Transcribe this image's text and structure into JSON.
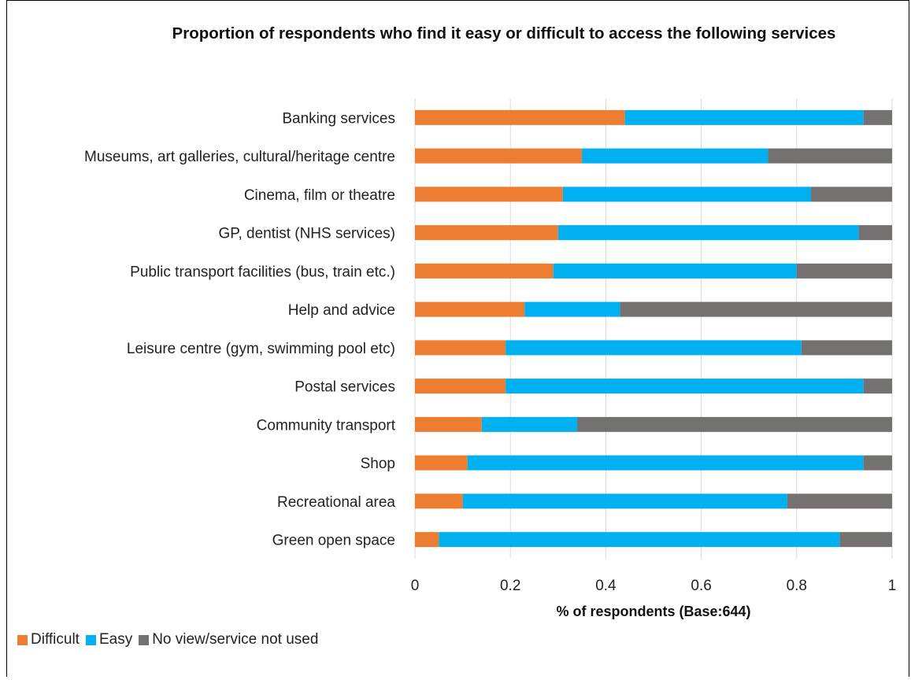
{
  "chart_data": {
    "type": "bar",
    "orientation": "horizontal",
    "stacked": true,
    "title": "Proportion of respondents who find it easy or difficult to access the following services",
    "xlabel": "% of respondents (Base:644)",
    "xlim": [
      0,
      1
    ],
    "xticks": [
      "0",
      "0.2",
      "0.4",
      "0.6",
      "0.8",
      "1"
    ],
    "grid": true,
    "legend_position": "bottom-left",
    "categories": [
      "Banking services",
      "Museums, art galleries, cultural/heritage centre",
      "Cinema, film or theatre",
      "GP, dentist (NHS services)",
      "Public transport facilities (bus, train etc.)",
      "Help and advice",
      "Leisure centre (gym, swimming pool etc)",
      "Postal services",
      "Community transport",
      "Shop",
      "Recreational area",
      "Green open space"
    ],
    "series": [
      {
        "name": "Difficult",
        "color": "#ED7D31",
        "values": [
          0.44,
          0.35,
          0.31,
          0.3,
          0.29,
          0.23,
          0.19,
          0.19,
          0.14,
          0.11,
          0.1,
          0.05
        ]
      },
      {
        "name": "Easy",
        "color": "#00B0F0",
        "values": [
          0.5,
          0.39,
          0.52,
          0.63,
          0.51,
          0.2,
          0.62,
          0.75,
          0.2,
          0.83,
          0.68,
          0.84
        ]
      },
      {
        "name": "No view/service not used",
        "color": "#767171",
        "values": [
          0.06,
          0.26,
          0.17,
          0.07,
          0.2,
          0.57,
          0.19,
          0.06,
          0.66,
          0.06,
          0.22,
          0.11
        ]
      }
    ]
  }
}
